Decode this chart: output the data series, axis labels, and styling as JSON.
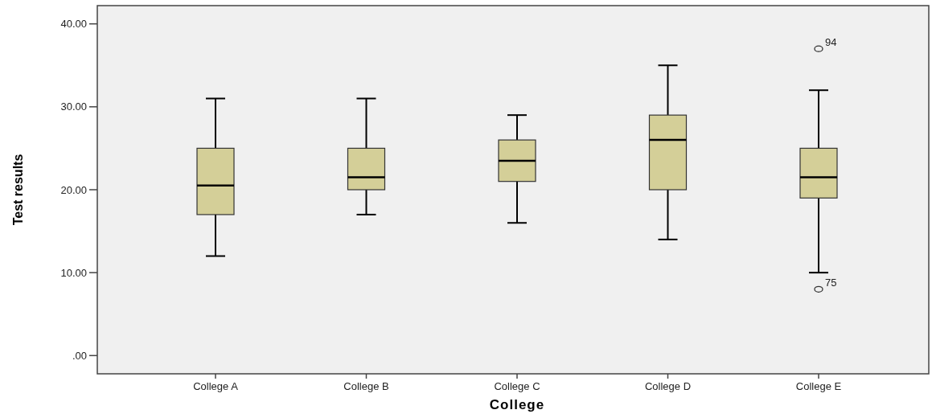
{
  "chart_data": {
    "type": "box",
    "xlabel": "College",
    "ylabel": "Test results",
    "categories": [
      "College A",
      "College B",
      "College C",
      "College D",
      "College E"
    ],
    "boxes": [
      {
        "low": 12,
        "q1": 17,
        "median": 20.5,
        "q3": 25,
        "high": 31
      },
      {
        "low": 17,
        "q1": 20,
        "median": 21.5,
        "q3": 25,
        "high": 31
      },
      {
        "low": 16,
        "q1": 21,
        "median": 23.5,
        "q3": 26,
        "high": 29
      },
      {
        "low": 14,
        "q1": 20,
        "median": 26,
        "q3": 29,
        "high": 35
      },
      {
        "low": 10,
        "q1": 19,
        "median": 21.5,
        "q3": 25,
        "high": 32,
        "outliers": [
          37,
          8
        ]
      }
    ],
    "color": "#d4cf98",
    "ylim": [
      -2.2,
      42.2
    ],
    "yticks": [
      {
        "value": 0,
        "label": ".00"
      },
      {
        "value": 10,
        "label": "10.00"
      },
      {
        "value": 20,
        "label": "20.00"
      },
      {
        "value": 30,
        "label": "30.00"
      },
      {
        "value": 40,
        "label": "40.00"
      }
    ],
    "grid": false,
    "annotations": [
      "94",
      "75"
    ]
  }
}
